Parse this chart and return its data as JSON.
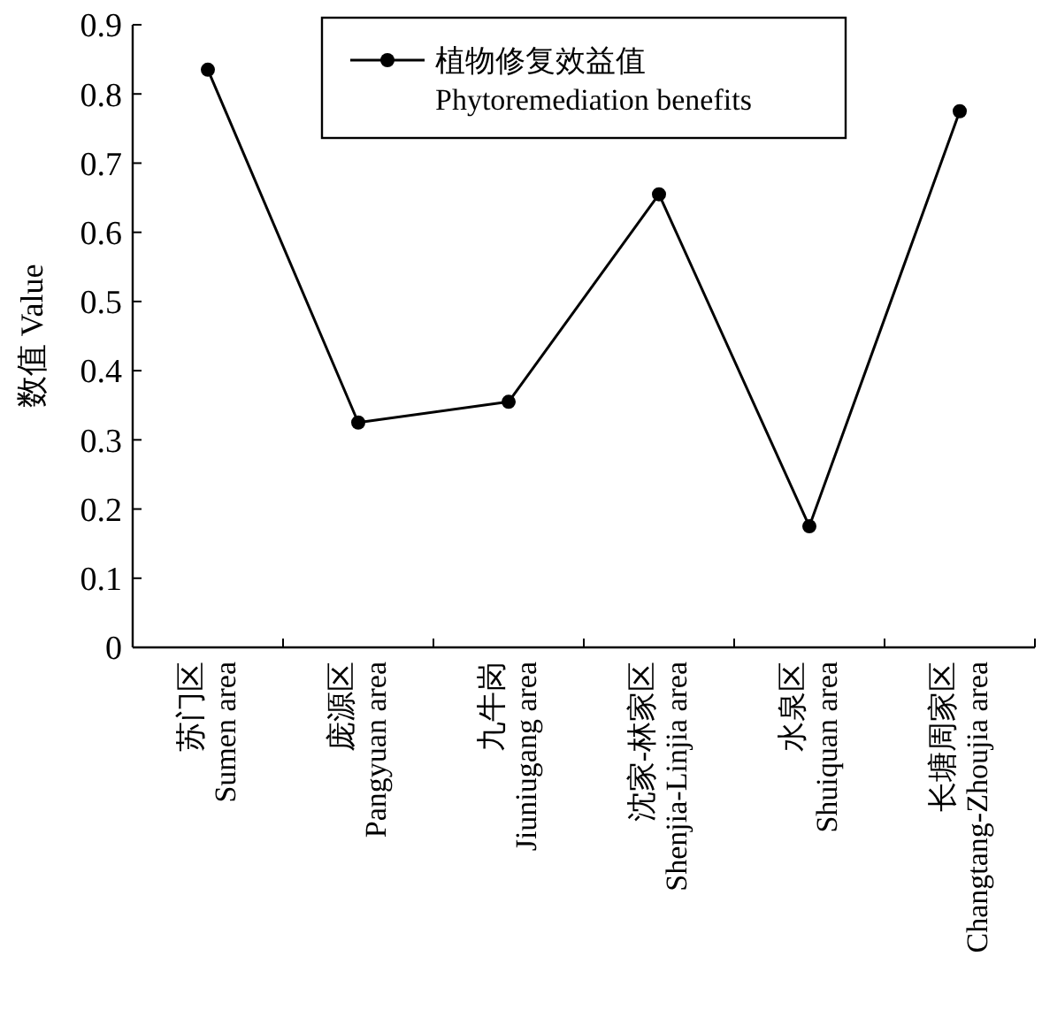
{
  "chart_data": {
    "type": "line",
    "ylabel": "数值 Value",
    "categories": [
      "苏门区\nSumen area",
      "庞源区\nPangyuan area",
      "九牛岗\nJiuniugang area",
      "沈家-林家区\nShenjia-Linjia area",
      "水泉区\nShuiquan area",
      "长塘周家区\nChangtang-Zhoujia area"
    ],
    "series": [
      {
        "name": "植物修复效益值\nPhytoremediation benefits",
        "color": "#000000",
        "values": [
          0.835,
          0.325,
          0.355,
          0.655,
          0.175,
          0.775
        ]
      }
    ],
    "ylim": [
      0,
      0.9
    ],
    "yticks": [
      0,
      0.1,
      0.2,
      0.3,
      0.4,
      0.5,
      0.6,
      0.7,
      0.8,
      0.9
    ],
    "legend": "top",
    "marker": "circle",
    "line_style": "solid",
    "grid": false
  }
}
